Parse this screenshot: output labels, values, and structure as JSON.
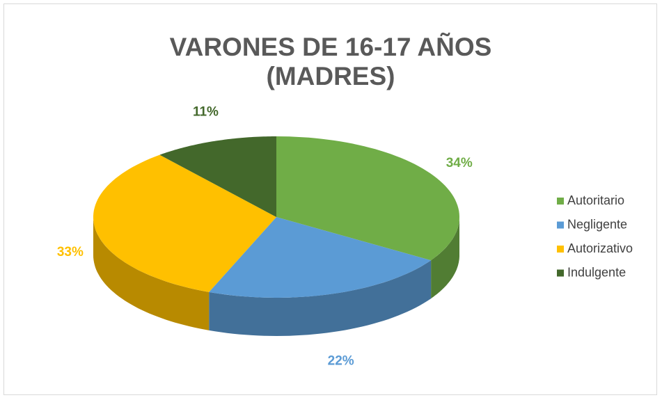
{
  "chart_data": {
    "type": "pie",
    "title": [
      "VARONES DE 16-17 AÑOS",
      "(MADRES)"
    ],
    "categories": [
      "Autoritario",
      "Negligente",
      "Autorizativo",
      "Indulgente"
    ],
    "values": [
      34,
      22,
      33,
      11
    ],
    "value_labels": [
      "34%",
      "22%",
      "33%",
      "11%"
    ],
    "colors": [
      "#70ad47",
      "#5b9bd5",
      "#ffc000",
      "#43682b"
    ],
    "legend": "right"
  }
}
